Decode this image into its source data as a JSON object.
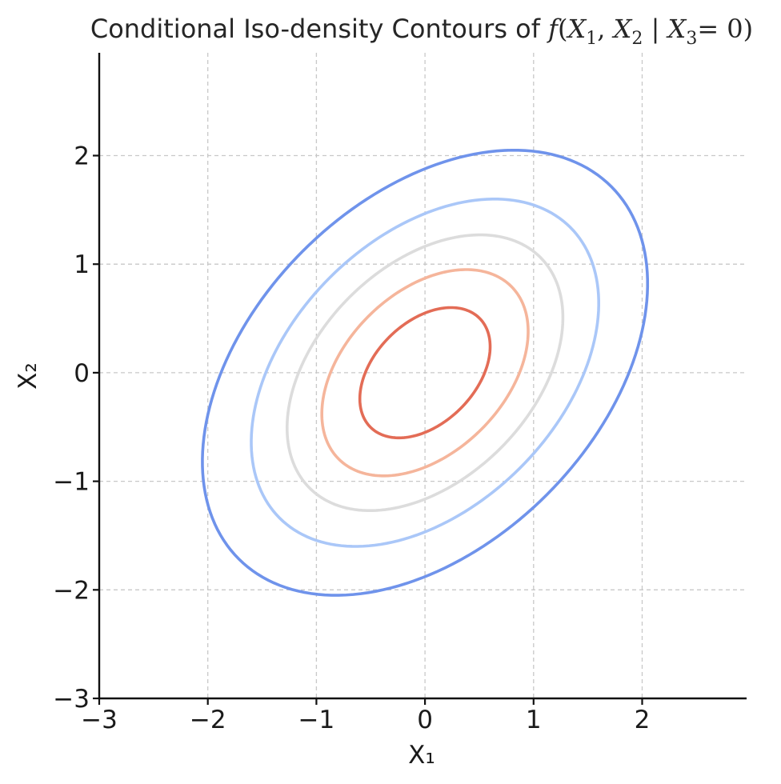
{
  "chart_data": {
    "type": "contour",
    "title": {
      "prefix": "Conditional Iso-density Contours of ",
      "func": "f",
      "x1": "X",
      "x1_sub": "1",
      "x2": "X",
      "x2_sub": "2",
      "bar": "|",
      "x3": "X",
      "x3_sub": "3",
      "eq": "= 0)"
    },
    "xlabel": "X₁",
    "ylabel": "X₂",
    "xlim": [
      -3,
      3
    ],
    "ylim": [
      -3,
      3
    ],
    "xticks": [
      -3,
      -2,
      -1,
      0,
      1,
      2
    ],
    "yticks": [
      -3,
      -2,
      -1,
      0,
      1,
      2
    ],
    "xtick_labels": [
      "−3",
      "−2",
      "−1",
      "0",
      "1",
      "2"
    ],
    "ytick_labels": [
      "−3",
      "−2",
      "−1",
      "0",
      "1",
      "2"
    ],
    "grid": true,
    "distribution": {
      "mean": [
        0,
        0
      ],
      "var_x1": 1.0,
      "var_x2": 1.0,
      "cov_x1_x2": 0.4
    },
    "contour_levels": [
      {
        "mahalanobis": 0.6,
        "color": "#e36c56"
      },
      {
        "mahalanobis": 0.95,
        "color": "#f5b59b"
      },
      {
        "mahalanobis": 1.27,
        "color": "#dcdcdc"
      },
      {
        "mahalanobis": 1.6,
        "color": "#aac7f8"
      },
      {
        "mahalanobis": 2.05,
        "color": "#6f93eb"
      }
    ]
  }
}
